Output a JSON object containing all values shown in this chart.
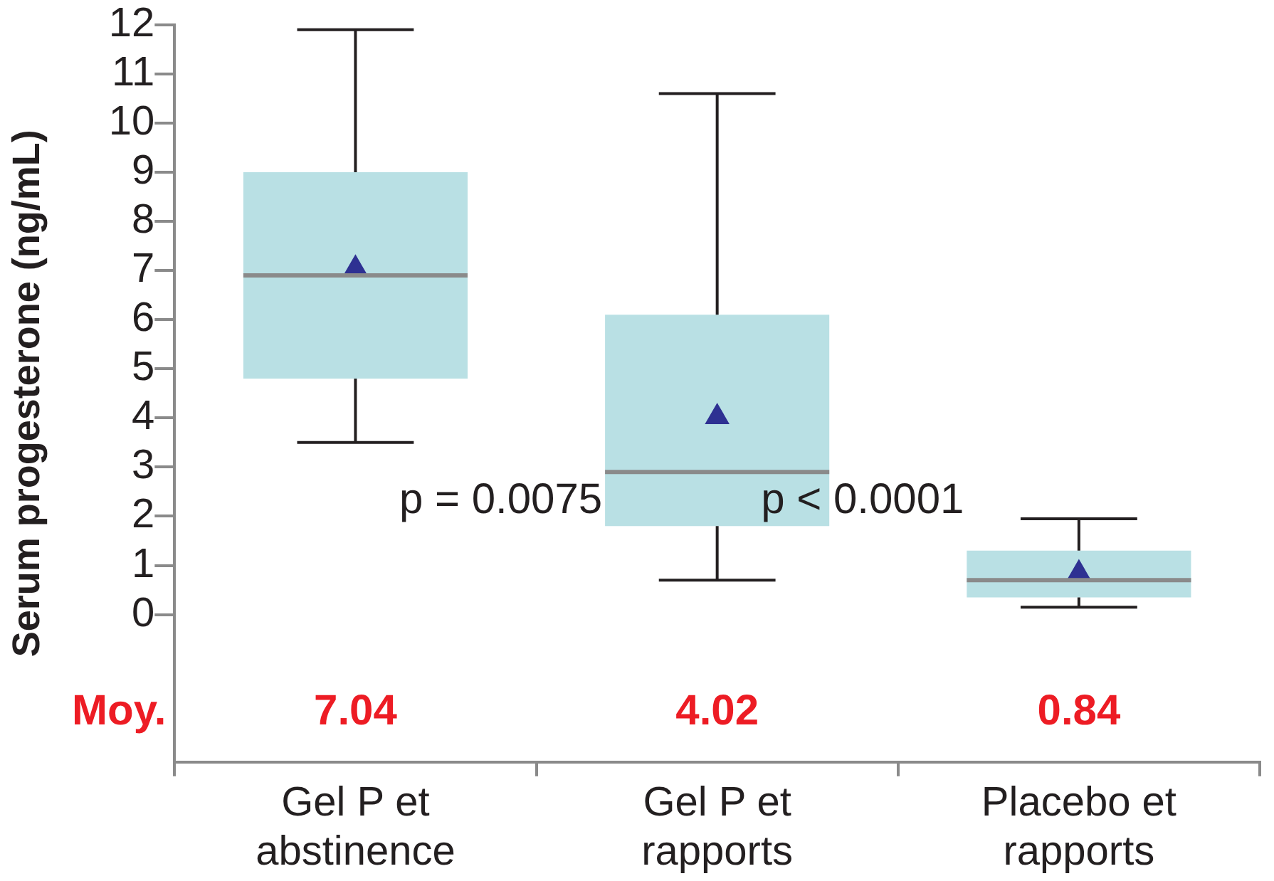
{
  "chart_data": {
    "type": "box",
    "ylabel": "Serum progesterone (ng/mL)",
    "categories": [
      "Gel P et abstinence",
      "Gel P et rapports",
      "Placebo et rapports"
    ],
    "boxes": [
      {
        "low": 3.5,
        "q1": 4.8,
        "median": 6.9,
        "q3": 9.0,
        "high": 11.9,
        "mean": 7.04
      },
      {
        "low": 0.7,
        "q1": 1.8,
        "median": 2.9,
        "q3": 6.1,
        "high": 10.6,
        "mean": 4.02
      },
      {
        "low": 0.15,
        "q1": 0.35,
        "median": 0.7,
        "q3": 1.3,
        "high": 1.95,
        "mean": 0.84
      }
    ],
    "color": "#b9e0e4",
    "ylim": [
      -3,
      12
    ],
    "yticks": [
      0,
      1,
      2,
      3,
      4,
      5,
      6,
      7,
      8,
      9,
      10,
      11,
      12
    ],
    "grid": false,
    "legend": false,
    "marker": "triangle",
    "annotations": [
      "Moy.",
      "7.04",
      "4.02",
      "0.84",
      "p = 0.0075",
      "p < 0.0001"
    ]
  }
}
